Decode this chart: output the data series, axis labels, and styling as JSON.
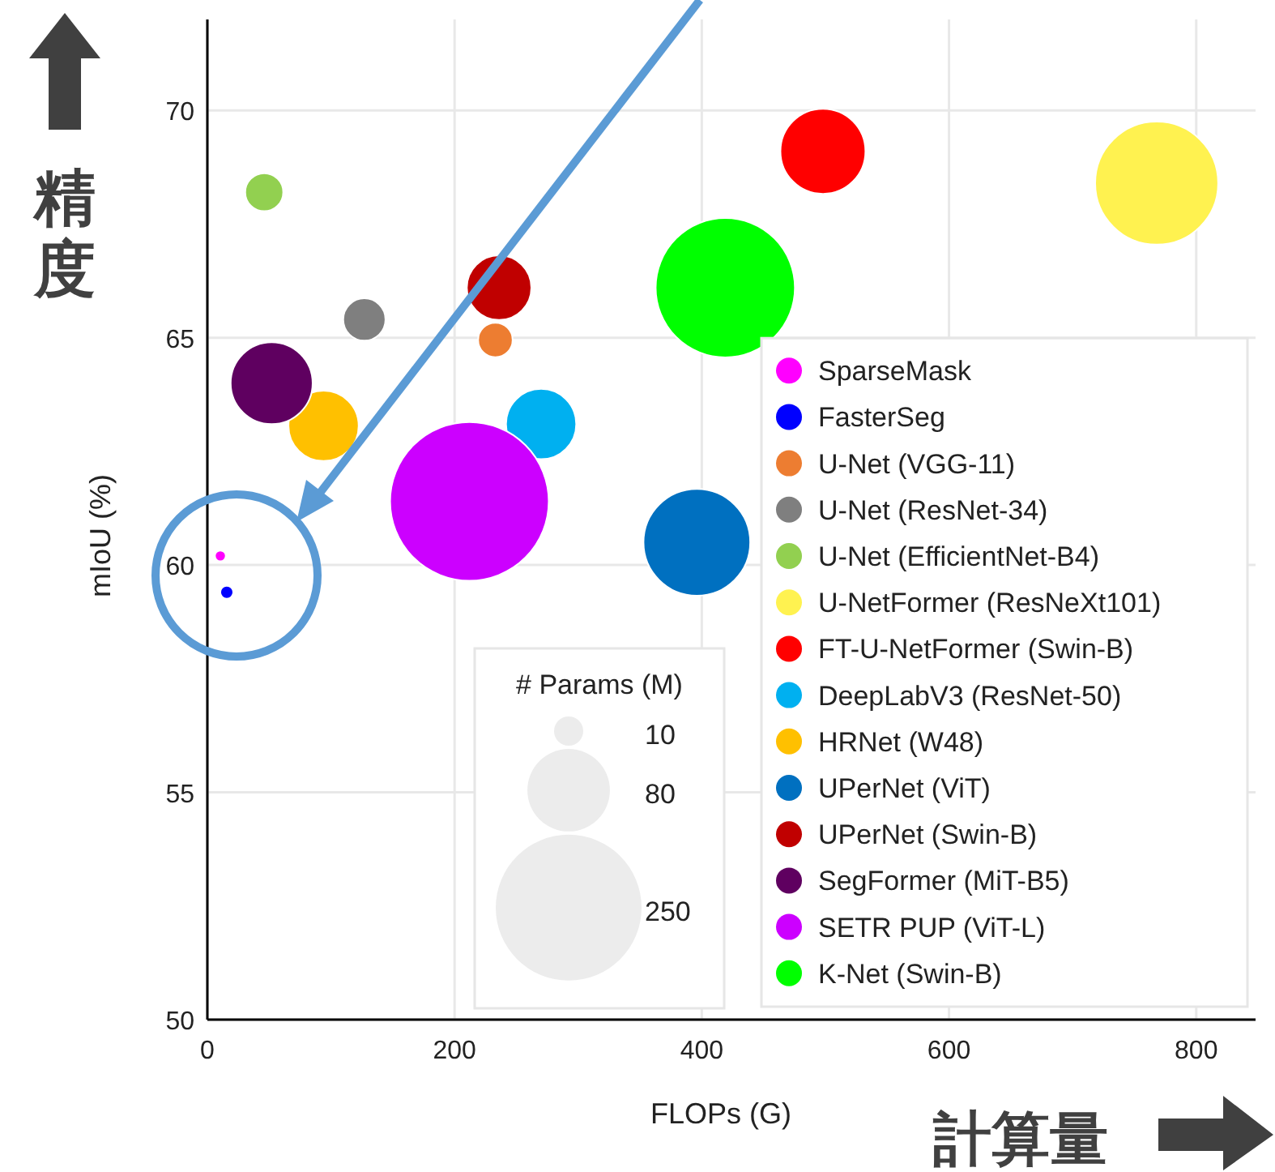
{
  "chart_data": {
    "type": "bubble",
    "xlabel": "FLOPs (G)",
    "ylabel": "mIoU (%)",
    "legend_title": "# Params (M)",
    "size_legend": [
      10,
      80,
      250
    ],
    "xlim": [
      0,
      848
    ],
    "ylim": [
      50,
      72
    ],
    "xticks": [
      0,
      200,
      400,
      600,
      800
    ],
    "yticks": [
      50,
      55,
      60,
      65,
      70
    ],
    "grid": true,
    "legend": "bottom right",
    "annotations": [
      "精度",
      "計算量"
    ],
    "series": [
      {
        "name": "SparseMask",
        "color": "#ff00ff",
        "x": [
          10.5
        ],
        "values": [
          60.2
        ],
        "sizes": [
          1.4
        ]
      },
      {
        "name": "FasterSeg",
        "color": "#0000ff",
        "x": [
          15.7
        ],
        "values": [
          59.4
        ],
        "sizes": [
          2
        ]
      },
      {
        "name": "U-Net (VGG-11)",
        "color": "#ed7d31",
        "x": [
          233
        ],
        "values": [
          64.95
        ],
        "sizes": [
          14
        ]
      },
      {
        "name": "U-Net (ResNet-34)",
        "color": "#7f7f7f",
        "x": [
          127
        ],
        "values": [
          65.4
        ],
        "sizes": [
          21
        ]
      },
      {
        "name": "U-Net (EfficientNet-B4)",
        "color": "#92d050",
        "x": [
          46
        ],
        "values": [
          68.2
        ],
        "sizes": [
          17
        ]
      },
      {
        "name": "U-NetFormer (ResNeXt101)",
        "color": "#fff250",
        "x": [
          768
        ],
        "values": [
          68.4
        ],
        "sizes": [
          178
        ]
      },
      {
        "name": "FT-U-NetFormer (Swin-B)",
        "color": "#ff0000",
        "x": [
          498
        ],
        "values": [
          69.1
        ],
        "sizes": [
          85
        ]
      },
      {
        "name": "DeepLabV3 (ResNet-50)",
        "color": "#00b0f0",
        "x": [
          270
        ],
        "values": [
          63.1
        ],
        "sizes": [
          58
        ]
      },
      {
        "name": "HRNet (W48)",
        "color": "#ffc000",
        "x": [
          94
        ],
        "values": [
          63.06
        ],
        "sizes": [
          58
        ]
      },
      {
        "name": "UPerNet (ViT)",
        "color": "#0070c0",
        "x": [
          396
        ],
        "values": [
          60.5
        ],
        "sizes": [
          134
        ]
      },
      {
        "name": "UPerNet (Swin-B)",
        "color": "#c00000",
        "x": [
          236
        ],
        "values": [
          66.1
        ],
        "sizes": [
          49
        ]
      },
      {
        "name": "SegFormer (MiT-B5)",
        "color": "#5f0060",
        "x": [
          52
        ],
        "values": [
          64.0
        ],
        "sizes": [
          79
        ]
      },
      {
        "name": "SETR PUP (ViT-L)",
        "color": "#cc00ff",
        "x": [
          212
        ],
        "values": [
          61.4
        ],
        "sizes": [
          296
        ]
      },
      {
        "name": "K-Net (Swin-B)",
        "color": "#00ff00",
        "x": [
          419
        ],
        "values": [
          66.1
        ],
        "sizes": [
          228
        ]
      }
    ]
  }
}
